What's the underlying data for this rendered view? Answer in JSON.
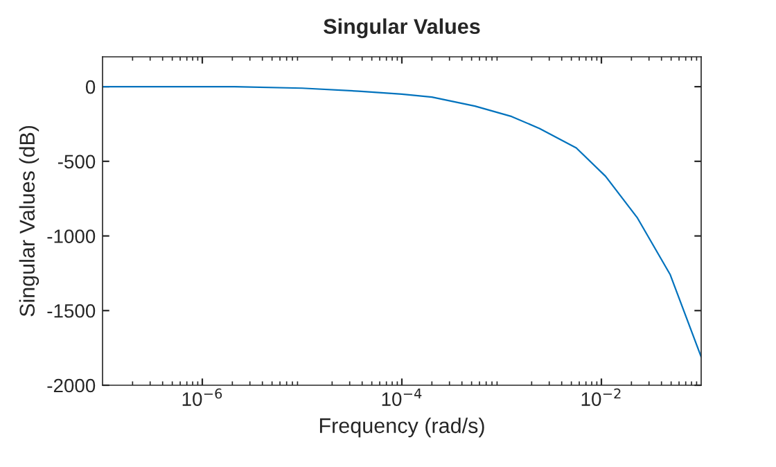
{
  "chart_data": {
    "type": "line",
    "title": "Singular Values",
    "xlabel": "Frequency (rad/s)",
    "ylabel": "Singular Values (dB)",
    "log": "x",
    "x": [
      1e-07,
      2.1e-06,
      1e-05,
      3.7e-05,
      0.0001,
      0.0002,
      0.00054,
      0.00126,
      0.0024,
      0.0056,
      0.011,
      0.023,
      0.049,
      0.1
    ],
    "series": [
      {
        "color": "#0072bd",
        "values": [
          0,
          0,
          -10,
          -30,
          -50,
          -70,
          -130,
          -200,
          -280,
          -410,
          -600,
          -880,
          -1260,
          -1810
        ]
      }
    ],
    "xlim": [
      1e-07,
      0.1
    ],
    "xticks": [
      {
        "value": 1e-06,
        "label": "10$^{−6}$"
      },
      {
        "value": 0.0001,
        "label": "10$^{−4}$"
      },
      {
        "value": 0.01,
        "label": "10$^{−2}$"
      }
    ],
    "ylim": [
      -2000,
      200
    ],
    "yticks": [
      -2000,
      -1500,
      -1000,
      -500,
      0
    ],
    "grid": false,
    "legend": false,
    "marker": "none",
    "line_style": "solid"
  }
}
